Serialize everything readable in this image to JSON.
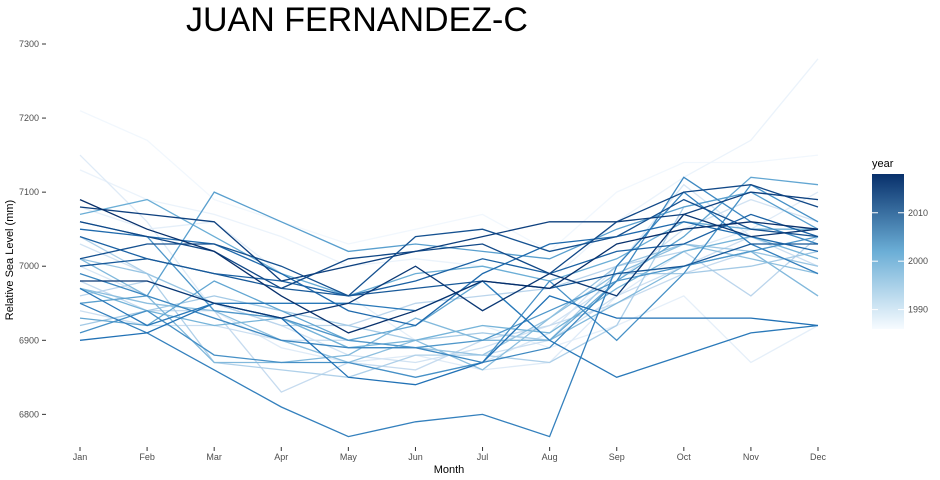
{
  "chart_data": {
    "type": "line",
    "title": "JUAN FERNANDEZ-C",
    "xlabel": "Month",
    "ylabel": "Relative Sea Level (mm)",
    "categories": [
      "Jan",
      "Feb",
      "Mar",
      "Apr",
      "May",
      "Jun",
      "Jul",
      "Aug",
      "Sep",
      "Oct",
      "Nov",
      "Dec"
    ],
    "ylim": [
      6760,
      7300
    ],
    "yticks": [
      6800,
      6900,
      7000,
      7100,
      7200,
      7300
    ],
    "grid": false,
    "legend": {
      "title": "year",
      "placement": "right",
      "type": "continuous-colorbar",
      "range": [
        1986,
        2018
      ],
      "ticks": [
        1990,
        2000,
        2010
      ],
      "color_low": "#f7fbff",
      "color_high": "#08306b"
    },
    "series": [
      {
        "year": 1987,
        "values": [
          7210,
          7170,
          7090,
          7060,
          7030,
          7050,
          7070,
          7020,
          7100,
          7140,
          7140,
          7150
        ]
      },
      {
        "year": 1988,
        "values": [
          7130,
          7090,
          7070,
          7040,
          7000,
          7010,
          7000,
          6980,
          7060,
          7120,
          7170,
          7280
        ]
      },
      {
        "year": 1989,
        "values": [
          7080,
          7050,
          7060,
          6990,
          6960,
          6900,
          6920,
          6890,
          6920,
          6960,
          6870,
          6920
        ]
      },
      {
        "year": 1990,
        "values": [
          7150,
          7060,
          6940,
          6890,
          6870,
          6880,
          6860,
          6870,
          6960,
          7020,
          7050,
          7100
        ]
      },
      {
        "year": 1991,
        "values": [
          7000,
          6960,
          6930,
          6900,
          6870,
          6850,
          6870,
          6910,
          7000,
          7110,
          7040,
          7010
        ]
      },
      {
        "year": 1992,
        "values": [
          7030,
          6990,
          6950,
          6920,
          6880,
          6870,
          6890,
          6920,
          6980,
          7050,
          7090,
          7060
        ]
      },
      {
        "year": 1993,
        "values": [
          6940,
          6920,
          6920,
          6900,
          6900,
          6890,
          6880,
          6900,
          6960,
          7000,
          7040,
          7000
        ]
      },
      {
        "year": 1994,
        "values": [
          6980,
          6940,
          6940,
          6830,
          6870,
          6860,
          6900,
          6920,
          6950,
          6990,
          7020,
          6960
        ]
      },
      {
        "year": 1995,
        "values": [
          6960,
          6980,
          6950,
          6920,
          6920,
          6950,
          6960,
          6970,
          7000,
          7020,
          6960,
          7040
        ]
      },
      {
        "year": 1996,
        "values": [
          7040,
          6990,
          6870,
          6860,
          6850,
          6880,
          6880,
          6870,
          6920,
          7080,
          7100,
          7090
        ]
      },
      {
        "year": 1997,
        "values": [
          6920,
          6940,
          6960,
          6940,
          6920,
          6900,
          6910,
          6900,
          6990,
          6990,
          7000,
          7020
        ]
      },
      {
        "year": 1998,
        "values": [
          7010,
          6990,
          6950,
          6930,
          6890,
          6890,
          6880,
          6930,
          7000,
          7030,
          7020,
          7000
        ]
      },
      {
        "year": 1999,
        "values": [
          6970,
          6950,
          6940,
          6900,
          6870,
          6900,
          6860,
          6930,
          6990,
          7030,
          7010,
          6990
        ]
      },
      {
        "year": 2000,
        "values": [
          7010,
          6960,
          6870,
          6870,
          6880,
          6930,
          6900,
          6900,
          6950,
          7000,
          7020,
          6960
        ]
      },
      {
        "year": 2001,
        "values": [
          6970,
          6940,
          6920,
          6930,
          6890,
          6900,
          6920,
          6910,
          6970,
          7020,
          7040,
          7010
        ]
      },
      {
        "year": 2002,
        "values": [
          7070,
          7090,
          7040,
          6990,
          6960,
          6990,
          7000,
          6980,
          7010,
          7060,
          7050,
          7050
        ]
      },
      {
        "year": 2003,
        "values": [
          6930,
          6920,
          6980,
          6940,
          6900,
          6920,
          6980,
          6900,
          6980,
          7040,
          7120,
          7110
        ]
      },
      {
        "year": 2004,
        "values": [
          6950,
          6960,
          7100,
          7060,
          7020,
          7030,
          7020,
          7010,
          7050,
          7080,
          7100,
          7050
        ]
      },
      {
        "year": 2005,
        "values": [
          7060,
          7040,
          6940,
          6930,
          6900,
          6890,
          6900,
          6940,
          6980,
          7000,
          7020,
          7040
        ]
      },
      {
        "year": 2006,
        "values": [
          6910,
          6940,
          6880,
          6870,
          6870,
          6850,
          6870,
          6980,
          6900,
          6990,
          7110,
          7060
        ]
      },
      {
        "year": 2007,
        "values": [
          6990,
          6960,
          6930,
          6900,
          6890,
          6890,
          6870,
          6890,
          6980,
          7120,
          7060,
          7030
        ]
      },
      {
        "year": 2008,
        "values": [
          6950,
          6910,
          6860,
          6810,
          6770,
          6790,
          6800,
          6770,
          7000,
          7100,
          7030,
          6990
        ]
      },
      {
        "year": 2009,
        "values": [
          6970,
          6920,
          6950,
          6950,
          6950,
          6940,
          6980,
          6900,
          6850,
          6880,
          6910,
          6920
        ]
      },
      {
        "year": 2010,
        "values": [
          6900,
          6910,
          6950,
          6930,
          6850,
          6840,
          6870,
          6960,
          6930,
          6930,
          6930,
          6920
        ]
      },
      {
        "year": 2011,
        "values": [
          7050,
          7040,
          7030,
          6990,
          6940,
          6920,
          6990,
          7030,
          7040,
          7060,
          7040,
          7020
        ]
      },
      {
        "year": 2012,
        "values": [
          7040,
          7010,
          6990,
          6980,
          6960,
          6980,
          7010,
          6990,
          7020,
          7030,
          7070,
          7040
        ]
      },
      {
        "year": 2013,
        "values": [
          7000,
          7010,
          6990,
          6970,
          6960,
          6970,
          6980,
          6970,
          6990,
          7000,
          7030,
          7030
        ]
      },
      {
        "year": 2014,
        "values": [
          7010,
          7030,
          7030,
          7000,
          6960,
          7040,
          7050,
          7020,
          7040,
          7090,
          7050,
          7040
        ]
      },
      {
        "year": 2015,
        "values": [
          7060,
          7040,
          7020,
          6970,
          7010,
          7020,
          7030,
          6990,
          7060,
          7100,
          7110,
          7080
        ]
      },
      {
        "year": 2016,
        "values": [
          7080,
          7070,
          7060,
          6980,
          7000,
          7020,
          7040,
          7060,
          7060,
          7070,
          7100,
          7090
        ]
      },
      {
        "year": 2017,
        "values": [
          6980,
          6980,
          6950,
          6930,
          6950,
          7000,
          6940,
          6990,
          6960,
          7070,
          7040,
          7050
        ]
      },
      {
        "year": 2018,
        "values": [
          7090,
          7050,
          7020,
          6960,
          6910,
          6940,
          6980,
          6970,
          7030,
          7050,
          7060,
          7050
        ]
      }
    ]
  }
}
